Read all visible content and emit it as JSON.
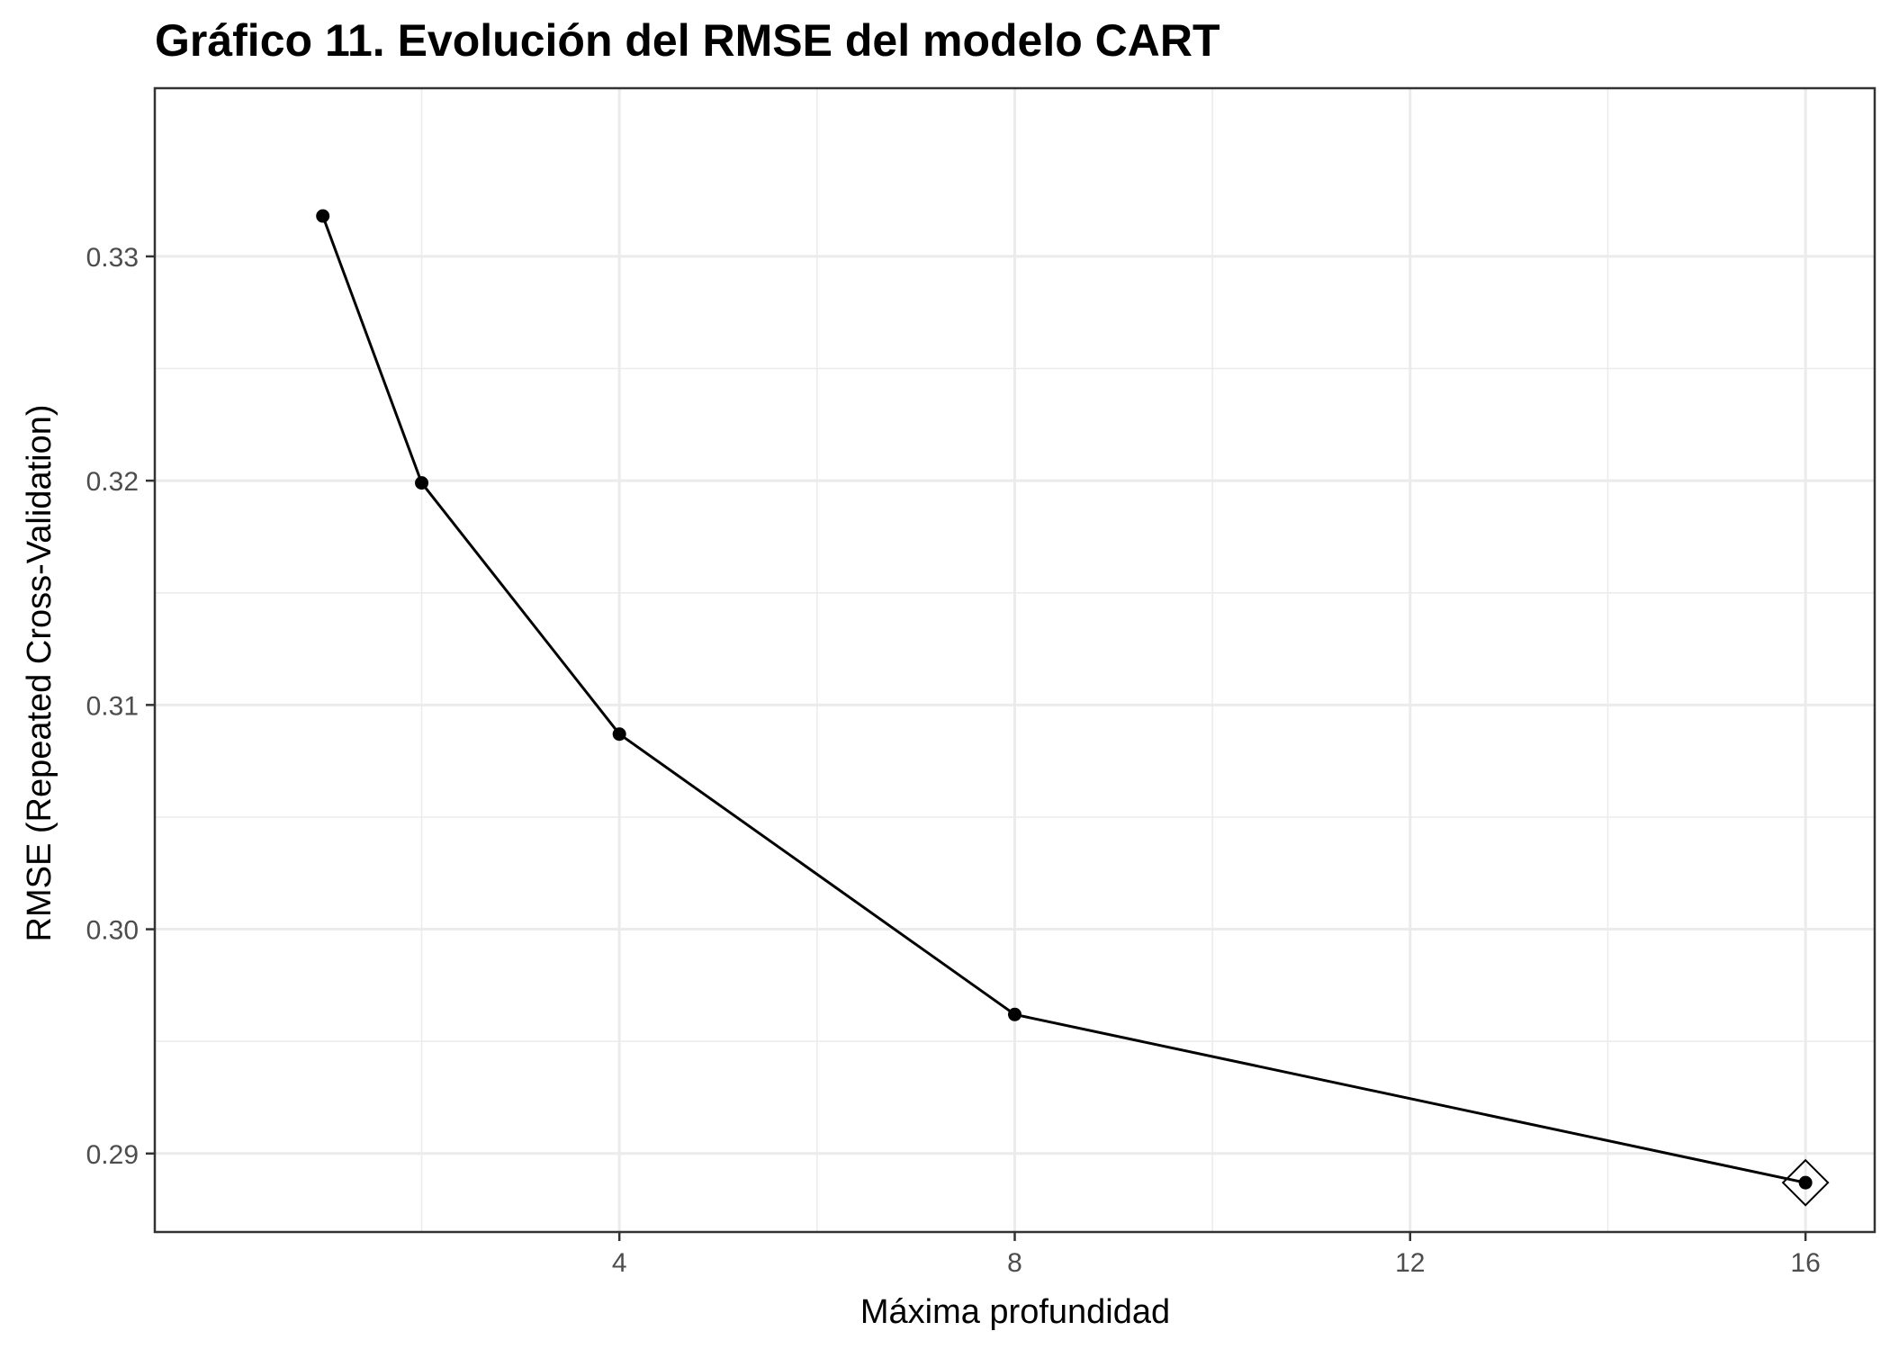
{
  "chart_data": {
    "type": "line",
    "title": "Gráfico 11. Evolución del RMSE del modelo CART",
    "xlabel": "Máxima profundidad",
    "ylabel": "RMSE (Repeated Cross-Validation)",
    "x": [
      1,
      2,
      4,
      8,
      16
    ],
    "series": [
      {
        "values": [
          0.3318,
          0.3199,
          0.3087,
          0.2962,
          0.2887
        ]
      }
    ],
    "best_point": {
      "x": 16,
      "y": 0.2887
    },
    "xlim": [
      -0.7,
      16.7
    ],
    "ylim": [
      0.2865,
      0.3375
    ],
    "xticks": [
      4,
      8,
      12,
      16
    ],
    "xtick_labels": [
      "4",
      "8",
      "12",
      "16"
    ],
    "xminor": [
      2,
      6,
      10,
      14
    ],
    "yticks": [
      0.29,
      0.3,
      0.31,
      0.32,
      0.33
    ],
    "ytick_labels": [
      "0.29",
      "0.30",
      "0.31",
      "0.32",
      "0.33"
    ],
    "yminor": [
      0.295,
      0.305,
      0.315,
      0.325
    ],
    "grid": true,
    "colors": {
      "line": "#000000",
      "grid": "#ebebeb",
      "panel_border": "#333333",
      "tick_text": "#4d4d4d"
    }
  }
}
